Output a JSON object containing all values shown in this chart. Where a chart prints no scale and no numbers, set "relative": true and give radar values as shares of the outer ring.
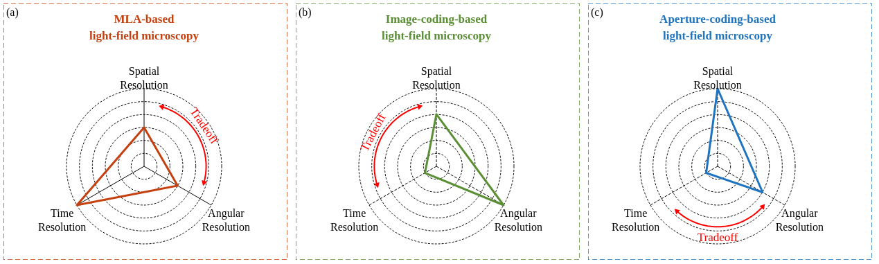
{
  "chart_data": [
    {
      "type": "radar",
      "title": "MLA-based\nlight-field microscopy",
      "categories": [
        "Spatial Resolution",
        "Angular Resolution",
        "Time Resolution"
      ],
      "relative": true,
      "grid": true,
      "annotations": [
        "(a)",
        "Tradeoff"
      ],
      "series": [
        {
          "color": "#c5400e",
          "values": [
            0.5,
            0.5,
            1.0
          ]
        }
      ]
    },
    {
      "type": "radar",
      "title": "Image-coding-based\nlight-field microscopy",
      "categories": [
        "Spatial Resolution",
        "Angular Resolution",
        "Time Resolution"
      ],
      "relative": true,
      "grid": true,
      "annotations": [
        "(b)",
        "Tradeoff"
      ],
      "series": [
        {
          "color": "#5a8f35",
          "values": [
            0.67,
            1.0,
            0.17
          ]
        }
      ]
    },
    {
      "type": "radar",
      "title": "Aperture-coding-based\nlight-field microscopy",
      "categories": [
        "Spatial Resolution",
        "Angular Resolution",
        "Time Resolution"
      ],
      "relative": true,
      "grid": true,
      "annotations": [
        "(c)",
        "Tradeoff"
      ],
      "series": [
        {
          "color": "#1f74c0",
          "values": [
            1.0,
            0.67,
            0.17
          ]
        }
      ]
    }
  ]
}
